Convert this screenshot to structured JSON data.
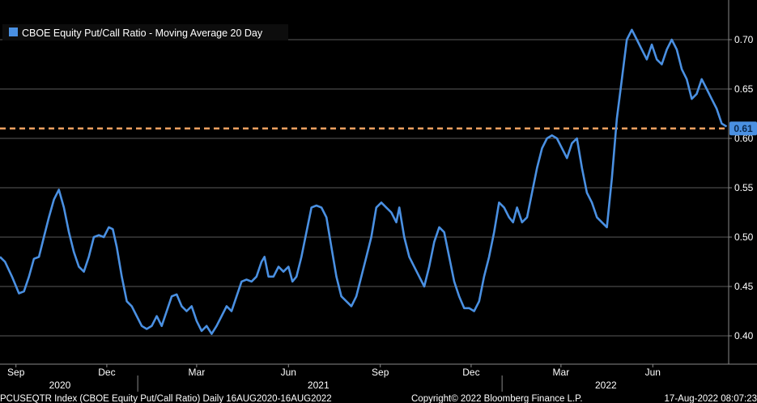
{
  "footer": {
    "ticker": "PCUSEQTR Index (CBOE Equity Put/Call Ratio)  Daily 16AUG2020-16AUG2022",
    "copyright": "Copyright© 2022 Bloomberg Finance L.P.",
    "timestamp": "17-Aug-2022 08:07:23"
  },
  "chart_data": {
    "type": "line",
    "title": "",
    "legend": {
      "position": "top-left",
      "entries": [
        "CBOE Equity Put/Call Ratio - Moving Average 20 Day"
      ]
    },
    "grid": true,
    "y_axis": {
      "side": "right",
      "ylim": [
        0.37,
        0.74
      ],
      "ticks": [
        "0.40",
        "0.45",
        "0.50",
        "0.55",
        "0.60",
        "0.65",
        "0.70"
      ]
    },
    "x_axis": {
      "range": [
        "2020-08-16",
        "2022-08-16"
      ],
      "month_labels": [
        {
          "label": "Sep",
          "date": "2020-09-01"
        },
        {
          "label": "Dec",
          "date": "2020-12-01"
        },
        {
          "label": "Mar",
          "date": "2021-03-01"
        },
        {
          "label": "Jun",
          "date": "2021-06-01"
        },
        {
          "label": "Sep",
          "date": "2021-09-01"
        },
        {
          "label": "Dec",
          "date": "2021-12-01"
        },
        {
          "label": "Mar",
          "date": "2022-03-01"
        },
        {
          "label": "Jun",
          "date": "2022-06-01"
        }
      ],
      "year_labels": [
        {
          "label": "2020",
          "date": "2020-10-15"
        },
        {
          "label": "2021",
          "date": "2021-07-01"
        },
        {
          "label": "2022",
          "date": "2022-04-15"
        }
      ],
      "year_dividers": [
        "2021-01-01",
        "2022-01-01"
      ]
    },
    "reference_line": {
      "value": 0.61,
      "label": "0.61",
      "color": "#f0a060",
      "style": "dashed"
    },
    "last_value": {
      "value": 0.61,
      "label": "0.61"
    },
    "series": [
      {
        "name": "CBOE Equity Put/Call Ratio - Moving Average 20 Day",
        "color": "#4a90e2",
        "points": [
          [
            "2020-08-16",
            0.48
          ],
          [
            "2020-08-21",
            0.475
          ],
          [
            "2020-08-28",
            0.46
          ],
          [
            "2020-09-04",
            0.443
          ],
          [
            "2020-09-09",
            0.445
          ],
          [
            "2020-09-14",
            0.46
          ],
          [
            "2020-09-19",
            0.478
          ],
          [
            "2020-09-24",
            0.48
          ],
          [
            "2020-09-29",
            0.5
          ],
          [
            "2020-10-04",
            0.52
          ],
          [
            "2020-10-09",
            0.538
          ],
          [
            "2020-10-14",
            0.548
          ],
          [
            "2020-10-19",
            0.53
          ],
          [
            "2020-10-24",
            0.505
          ],
          [
            "2020-10-29",
            0.485
          ],
          [
            "2020-11-03",
            0.47
          ],
          [
            "2020-11-08",
            0.465
          ],
          [
            "2020-11-13",
            0.48
          ],
          [
            "2020-11-18",
            0.5
          ],
          [
            "2020-11-23",
            0.502
          ],
          [
            "2020-11-28",
            0.5
          ],
          [
            "2020-12-03",
            0.51
          ],
          [
            "2020-12-07",
            0.508
          ],
          [
            "2020-12-11",
            0.49
          ],
          [
            "2020-12-16",
            0.46
          ],
          [
            "2020-12-21",
            0.435
          ],
          [
            "2020-12-26",
            0.43
          ],
          [
            "2020-12-31",
            0.42
          ],
          [
            "2021-01-05",
            0.41
          ],
          [
            "2021-01-10",
            0.407
          ],
          [
            "2021-01-15",
            0.41
          ],
          [
            "2021-01-20",
            0.42
          ],
          [
            "2021-01-25",
            0.41
          ],
          [
            "2021-01-30",
            0.425
          ],
          [
            "2021-02-04",
            0.44
          ],
          [
            "2021-02-09",
            0.442
          ],
          [
            "2021-02-14",
            0.43
          ],
          [
            "2021-02-19",
            0.425
          ],
          [
            "2021-02-24",
            0.43
          ],
          [
            "2021-03-01",
            0.415
          ],
          [
            "2021-03-06",
            0.405
          ],
          [
            "2021-03-11",
            0.41
          ],
          [
            "2021-03-16",
            0.402
          ],
          [
            "2021-03-21",
            0.41
          ],
          [
            "2021-03-26",
            0.42
          ],
          [
            "2021-03-31",
            0.43
          ],
          [
            "2021-04-05",
            0.425
          ],
          [
            "2021-04-10",
            0.44
          ],
          [
            "2021-04-15",
            0.455
          ],
          [
            "2021-04-20",
            0.457
          ],
          [
            "2021-04-25",
            0.455
          ],
          [
            "2021-04-30",
            0.46
          ],
          [
            "2021-05-05",
            0.475
          ],
          [
            "2021-05-08",
            0.48
          ],
          [
            "2021-05-12",
            0.46
          ],
          [
            "2021-05-17",
            0.46
          ],
          [
            "2021-05-22",
            0.47
          ],
          [
            "2021-05-27",
            0.465
          ],
          [
            "2021-06-01",
            0.47
          ],
          [
            "2021-06-05",
            0.455
          ],
          [
            "2021-06-09",
            0.46
          ],
          [
            "2021-06-14",
            0.48
          ],
          [
            "2021-06-19",
            0.505
          ],
          [
            "2021-06-24",
            0.53
          ],
          [
            "2021-06-29",
            0.532
          ],
          [
            "2021-07-04",
            0.53
          ],
          [
            "2021-07-09",
            0.52
          ],
          [
            "2021-07-14",
            0.49
          ],
          [
            "2021-07-19",
            0.46
          ],
          [
            "2021-07-24",
            0.44
          ],
          [
            "2021-07-29",
            0.435
          ],
          [
            "2021-08-03",
            0.43
          ],
          [
            "2021-08-08",
            0.44
          ],
          [
            "2021-08-13",
            0.46
          ],
          [
            "2021-08-18",
            0.48
          ],
          [
            "2021-08-23",
            0.5
          ],
          [
            "2021-08-28",
            0.53
          ],
          [
            "2021-09-02",
            0.535
          ],
          [
            "2021-09-07",
            0.53
          ],
          [
            "2021-09-12",
            0.525
          ],
          [
            "2021-09-17",
            0.515
          ],
          [
            "2021-09-20",
            0.53
          ],
          [
            "2021-09-25",
            0.5
          ],
          [
            "2021-09-30",
            0.48
          ],
          [
            "2021-10-05",
            0.47
          ],
          [
            "2021-10-10",
            0.46
          ],
          [
            "2021-10-15",
            0.45
          ],
          [
            "2021-10-20",
            0.47
          ],
          [
            "2021-10-25",
            0.495
          ],
          [
            "2021-10-30",
            0.51
          ],
          [
            "2021-11-04",
            0.505
          ],
          [
            "2021-11-09",
            0.48
          ],
          [
            "2021-11-14",
            0.455
          ],
          [
            "2021-11-19",
            0.44
          ],
          [
            "2021-11-24",
            0.428
          ],
          [
            "2021-11-29",
            0.428
          ],
          [
            "2021-12-04",
            0.425
          ],
          [
            "2021-12-09",
            0.435
          ],
          [
            "2021-12-14",
            0.46
          ],
          [
            "2021-12-19",
            0.48
          ],
          [
            "2021-12-24",
            0.505
          ],
          [
            "2021-12-29",
            0.535
          ],
          [
            "2022-01-03",
            0.53
          ],
          [
            "2022-01-08",
            0.52
          ],
          [
            "2022-01-12",
            0.515
          ],
          [
            "2022-01-16",
            0.53
          ],
          [
            "2022-01-21",
            0.515
          ],
          [
            "2022-01-26",
            0.52
          ],
          [
            "2022-01-31",
            0.545
          ],
          [
            "2022-02-05",
            0.57
          ],
          [
            "2022-02-10",
            0.59
          ],
          [
            "2022-02-15",
            0.6
          ],
          [
            "2022-02-20",
            0.603
          ],
          [
            "2022-02-25",
            0.6
          ],
          [
            "2022-03-02",
            0.59
          ],
          [
            "2022-03-07",
            0.58
          ],
          [
            "2022-03-12",
            0.595
          ],
          [
            "2022-03-17",
            0.6
          ],
          [
            "2022-03-22",
            0.57
          ],
          [
            "2022-03-27",
            0.545
          ],
          [
            "2022-04-01",
            0.535
          ],
          [
            "2022-04-06",
            0.52
          ],
          [
            "2022-04-11",
            0.515
          ],
          [
            "2022-04-16",
            0.51
          ],
          [
            "2022-04-21",
            0.56
          ],
          [
            "2022-04-26",
            0.62
          ],
          [
            "2022-05-01",
            0.66
          ],
          [
            "2022-05-06",
            0.7
          ],
          [
            "2022-05-11",
            0.71
          ],
          [
            "2022-05-16",
            0.7
          ],
          [
            "2022-05-21",
            0.69
          ],
          [
            "2022-05-26",
            0.68
          ],
          [
            "2022-05-31",
            0.695
          ],
          [
            "2022-06-05",
            0.68
          ],
          [
            "2022-06-10",
            0.675
          ],
          [
            "2022-06-15",
            0.69
          ],
          [
            "2022-06-20",
            0.7
          ],
          [
            "2022-06-25",
            0.69
          ],
          [
            "2022-06-30",
            0.67
          ],
          [
            "2022-07-05",
            0.66
          ],
          [
            "2022-07-10",
            0.64
          ],
          [
            "2022-07-15",
            0.645
          ],
          [
            "2022-07-20",
            0.66
          ],
          [
            "2022-07-25",
            0.65
          ],
          [
            "2022-07-30",
            0.64
          ],
          [
            "2022-08-04",
            0.63
          ],
          [
            "2022-08-09",
            0.615
          ],
          [
            "2022-08-14",
            0.612
          ]
        ]
      }
    ]
  }
}
